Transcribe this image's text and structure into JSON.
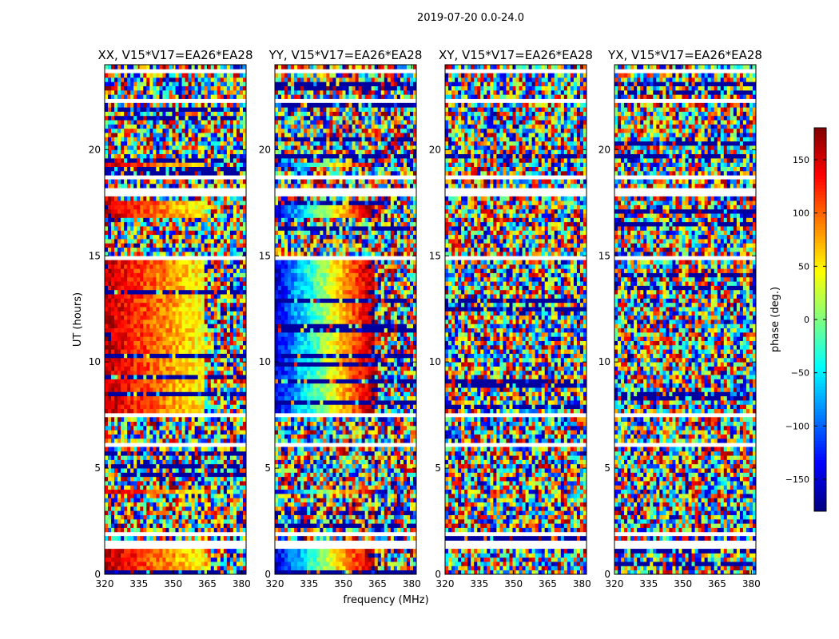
{
  "figure": {
    "suptitle": "2019-07-20 0.0-24.0"
  },
  "chart_data": {
    "type": "heatmap",
    "title": "2019-07-20 0.0-24.0",
    "xlabel": "frequency (MHz)",
    "ylabel": "UT (hours)",
    "xlim": [
      320,
      382
    ],
    "ylim": [
      0,
      24
    ],
    "x_ticks": [
      "320",
      "335",
      "350",
      "365",
      "380"
    ],
    "y_ticks": [
      "0",
      "5",
      "10",
      "15",
      "20"
    ],
    "colorbar": {
      "label": "phase (deg.)",
      "range": [
        -180,
        180
      ],
      "ticks": [
        "150",
        "100",
        "50",
        "0",
        "−50",
        "−100",
        "−150"
      ],
      "colormap": "jet"
    },
    "panels": [
      {
        "title": "XX, V15*V17=EA26*EA28",
        "structure": "coherent",
        "coherent_phase_deg": {
          "low_freq": 160,
          "high_freq": 40
        }
      },
      {
        "title": "YY, V15*V17=EA26*EA28",
        "structure": "coherent",
        "coherent_phase_deg": {
          "low_freq": -150,
          "high_freq": 175
        }
      },
      {
        "title": "XY, V15*V17=EA26*EA28",
        "structure": "noise"
      },
      {
        "title": "YX, V15*V17=EA26*EA28",
        "structure": "noise"
      }
    ]
  }
}
